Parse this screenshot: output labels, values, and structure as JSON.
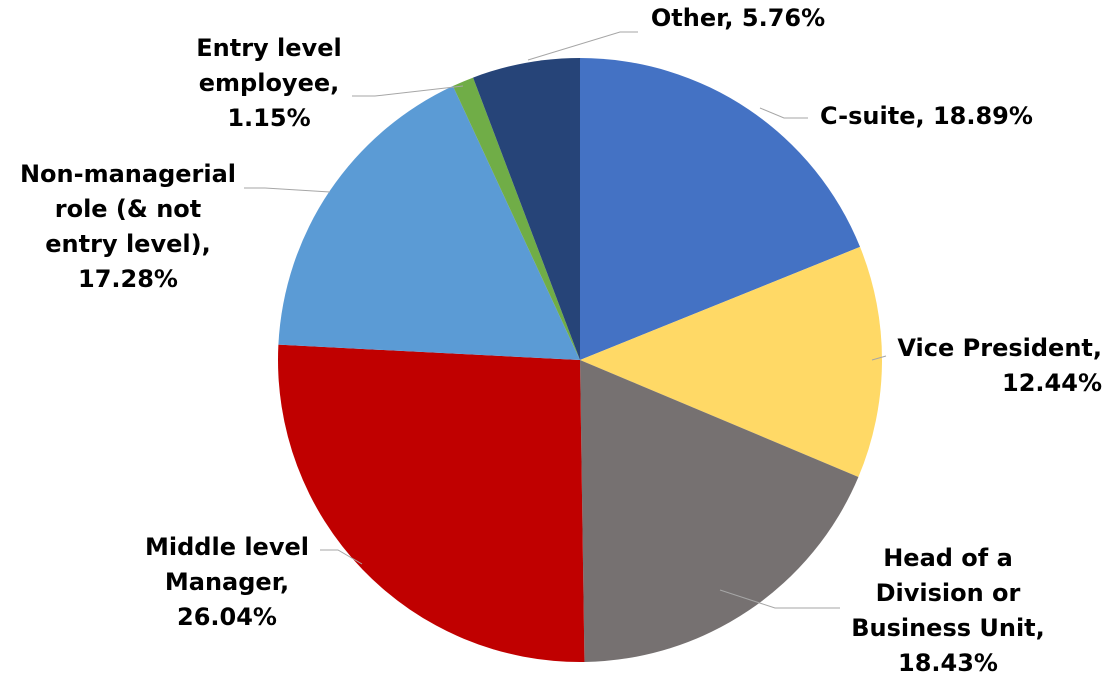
{
  "chart_data": {
    "type": "pie",
    "title": "",
    "slices": [
      {
        "name": "C-suite",
        "value": 18.89,
        "label_lines": [
          "C-suite, 18.89%"
        ],
        "color": "#4472c4"
      },
      {
        "name": "Vice President",
        "value": 12.44,
        "label_lines": [
          "Vice President,",
          "12.44%"
        ],
        "color": "#ffd966"
      },
      {
        "name": "Head of a Division or Business Unit",
        "value": 18.43,
        "label_lines": [
          "Head of a",
          "Division or",
          "Business Unit,",
          "18.43%"
        ],
        "color": "#767171"
      },
      {
        "name": "Middle level Manager",
        "value": 26.04,
        "label_lines": [
          "Middle level",
          "Manager,",
          "26.04%"
        ],
        "color": "#c00000"
      },
      {
        "name": "Non-managerial role (& not entry level)",
        "value": 17.28,
        "label_lines": [
          "Non-managerial",
          "role (& not",
          "entry level),",
          "17.28%"
        ],
        "color": "#5b9bd5"
      },
      {
        "name": "Entry level employee",
        "value": 1.15,
        "label_lines": [
          "Entry level",
          "employee,",
          "1.15%"
        ],
        "color": "#70ad47"
      },
      {
        "name": "Other",
        "value": 5.76,
        "label_lines": [
          "Other, 5.76%"
        ],
        "color": "#264478"
      }
    ],
    "start_angle": "12 o'clock",
    "direction": "clockwise",
    "legend": "none",
    "data_labels": "outside with leader lines"
  }
}
